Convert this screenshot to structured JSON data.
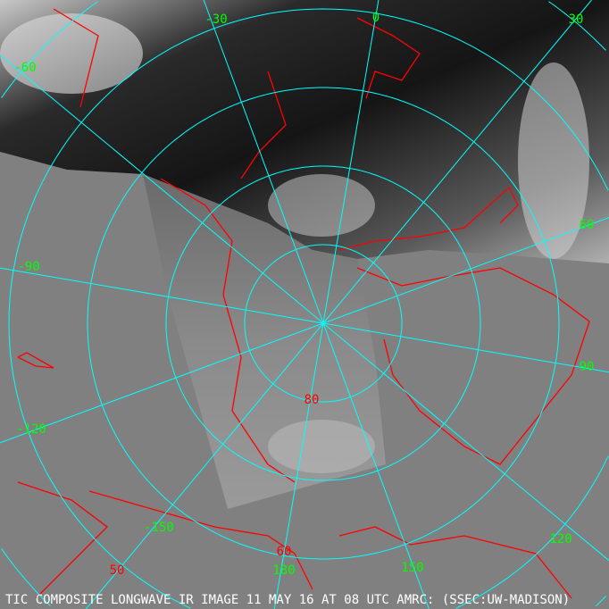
{
  "caption": "TIC COMPOSITE LONGWAVE IR IMAGE 11 MAY 16 AT 08 UTC AMRC: (SSEC:UW-MADISON)",
  "colors": {
    "background": "#808080",
    "grid": "#00ffff",
    "coastline": "#ff0000",
    "longitude_labels": "#00ff00",
    "latitude_labels": "#ff0000",
    "caption": "#ffffff"
  },
  "longitude_labels": [
    {
      "lon": -60,
      "text": "-60"
    },
    {
      "lon": -30,
      "text": "-30"
    },
    {
      "lon": 0,
      "text": "0"
    },
    {
      "lon": 30,
      "text": "30"
    },
    {
      "lon": 60,
      "text": "60"
    },
    {
      "lon": 90,
      "text": "90"
    },
    {
      "lon": 120,
      "text": "120"
    },
    {
      "lon": 150,
      "text": "150"
    },
    {
      "lon": 180,
      "text": "180"
    },
    {
      "lon": -150,
      "text": "-150"
    },
    {
      "lon": -120,
      "text": "-120"
    },
    {
      "lon": -90,
      "text": "-90"
    }
  ],
  "latitude_labels": [
    {
      "lat": 80,
      "text": "80"
    },
    {
      "lat": 60,
      "text": "60"
    },
    {
      "lat": 50,
      "text": "50"
    }
  ]
}
